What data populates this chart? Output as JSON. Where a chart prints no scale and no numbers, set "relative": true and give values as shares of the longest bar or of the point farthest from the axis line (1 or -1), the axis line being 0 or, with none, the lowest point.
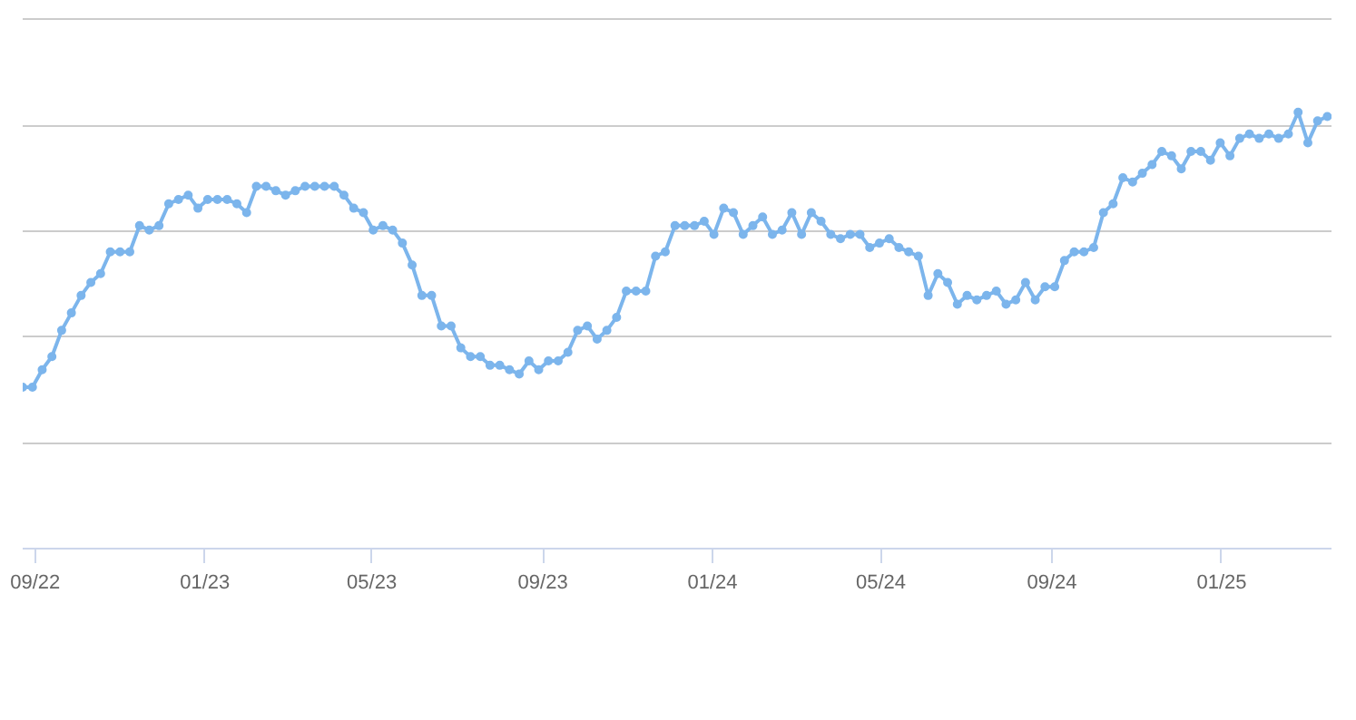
{
  "chart_data": {
    "type": "line",
    "relative": true,
    "color": "#7cb5ec",
    "marker": "circle",
    "line_style": "solid",
    "grid": "y",
    "tick_labels": "x",
    "xlim": [
      "2022-08-23",
      "2025-03-21"
    ],
    "xticks": [
      {
        "value": "2022-09-01",
        "label": "09/22"
      },
      {
        "value": "2023-01-01",
        "label": "01/23"
      },
      {
        "value": "2023-05-01",
        "label": "05/23"
      },
      {
        "value": "2023-09-01",
        "label": "09/23"
      },
      {
        "value": "2024-01-01",
        "label": "01/24"
      },
      {
        "value": "2024-05-01",
        "label": "05/24"
      },
      {
        "value": "2024-09-01",
        "label": "09/24"
      },
      {
        "value": "2025-01-01",
        "label": "01/25"
      }
    ],
    "x": [
      "2022-08-23",
      "2022-08-30",
      "2022-09-06",
      "2022-09-13",
      "2022-09-20",
      "2022-09-27",
      "2022-10-04",
      "2022-10-11",
      "2022-10-18",
      "2022-10-25",
      "2022-11-01",
      "2022-11-08",
      "2022-11-15",
      "2022-11-22",
      "2022-11-29",
      "2022-12-06",
      "2022-12-13",
      "2022-12-20",
      "2022-12-27",
      "2023-01-03",
      "2023-01-10",
      "2023-01-17",
      "2023-01-24",
      "2023-01-31",
      "2023-02-07",
      "2023-02-14",
      "2023-02-21",
      "2023-02-28",
      "2023-03-07",
      "2023-03-14",
      "2023-03-21",
      "2023-03-28",
      "2023-04-04",
      "2023-04-11",
      "2023-04-18",
      "2023-04-25",
      "2023-05-02",
      "2023-05-09",
      "2023-05-16",
      "2023-05-23",
      "2023-05-30",
      "2023-06-06",
      "2023-06-13",
      "2023-06-20",
      "2023-06-27",
      "2023-07-04",
      "2023-07-11",
      "2023-07-18",
      "2023-07-25",
      "2023-08-01",
      "2023-08-08",
      "2023-08-15",
      "2023-08-22",
      "2023-08-29",
      "2023-09-05",
      "2023-09-12",
      "2023-09-19",
      "2023-09-26",
      "2023-10-03",
      "2023-10-10",
      "2023-10-17",
      "2023-10-24",
      "2023-10-31",
      "2023-11-07",
      "2023-11-14",
      "2023-11-21",
      "2023-11-28",
      "2023-12-05",
      "2023-12-12",
      "2023-12-19",
      "2023-12-26",
      "2024-01-02",
      "2024-01-09",
      "2024-01-16",
      "2024-01-23",
      "2024-01-30",
      "2024-02-06",
      "2024-02-13",
      "2024-02-20",
      "2024-02-27",
      "2024-03-05",
      "2024-03-12",
      "2024-03-19",
      "2024-03-26",
      "2024-04-02",
      "2024-04-09",
      "2024-04-16",
      "2024-04-23",
      "2024-04-30",
      "2024-05-07",
      "2024-05-14",
      "2024-05-21",
      "2024-05-28",
      "2024-06-04",
      "2024-06-11",
      "2024-06-18",
      "2024-06-25",
      "2024-07-02",
      "2024-07-09",
      "2024-07-16",
      "2024-07-23",
      "2024-07-30",
      "2024-08-06",
      "2024-08-13",
      "2024-08-20",
      "2024-08-27",
      "2024-09-03",
      "2024-09-10",
      "2024-09-17",
      "2024-09-24",
      "2024-10-01",
      "2024-10-08",
      "2024-10-15",
      "2024-10-22",
      "2024-10-29",
      "2024-11-05",
      "2024-11-12",
      "2024-11-19",
      "2024-11-26",
      "2024-12-03",
      "2024-12-10",
      "2024-12-17",
      "2024-12-24",
      "2024-12-31",
      "2025-01-07",
      "2025-01-14",
      "2025-01-21",
      "2025-01-28",
      "2025-02-04",
      "2025-02-11",
      "2025-02-18",
      "2025-02-25",
      "2025-03-04",
      "2025-03-11",
      "2025-03-18"
    ],
    "values": [
      0.37,
      0.37,
      0.41,
      0.44,
      0.5,
      0.54,
      0.58,
      0.61,
      0.63,
      0.68,
      0.68,
      0.68,
      0.74,
      0.73,
      0.74,
      0.79,
      0.8,
      0.81,
      0.78,
      0.8,
      0.8,
      0.8,
      0.79,
      0.77,
      0.83,
      0.83,
      0.82,
      0.81,
      0.82,
      0.83,
      0.83,
      0.83,
      0.83,
      0.81,
      0.78,
      0.77,
      0.73,
      0.74,
      0.73,
      0.7,
      0.65,
      0.58,
      0.58,
      0.51,
      0.51,
      0.46,
      0.44,
      0.44,
      0.42,
      0.42,
      0.41,
      0.4,
      0.43,
      0.41,
      0.43,
      0.43,
      0.45,
      0.5,
      0.51,
      0.48,
      0.5,
      0.53,
      0.59,
      0.59,
      0.59,
      0.67,
      0.68,
      0.74,
      0.74,
      0.74,
      0.75,
      0.72,
      0.78,
      0.77,
      0.72,
      0.74,
      0.76,
      0.72,
      0.73,
      0.77,
      0.72,
      0.77,
      0.75,
      0.72,
      0.71,
      0.72,
      0.72,
      0.69,
      0.7,
      0.71,
      0.69,
      0.68,
      0.67,
      0.58,
      0.63,
      0.61,
      0.56,
      0.58,
      0.57,
      0.58,
      0.59,
      0.56,
      0.57,
      0.61,
      0.57,
      0.6,
      0.6,
      0.66,
      0.68,
      0.68,
      0.69,
      0.77,
      0.79,
      0.85,
      0.84,
      0.86,
      0.88,
      0.91,
      0.9,
      0.87,
      0.91,
      0.91,
      0.89,
      0.93,
      0.9,
      0.94,
      0.95,
      0.94,
      0.95,
      0.94,
      0.95,
      1.0,
      0.93,
      0.98,
      0.99
    ]
  }
}
